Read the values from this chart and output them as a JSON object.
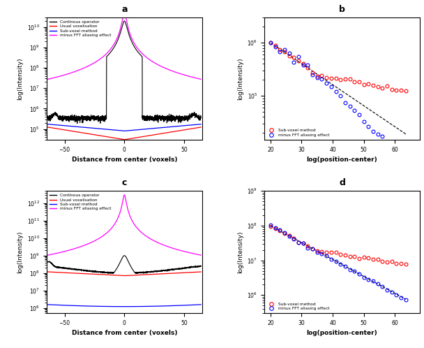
{
  "title_a": "a",
  "title_b": "b",
  "title_c": "c",
  "title_d": "d",
  "xlabel_left": "Distance from center (voxels)",
  "xlabel_right": "log(position-center)",
  "ylabel_left": "log(Intensity)",
  "ylabel_right": "log(Intensity)",
  "legend_a": [
    "Continous operator",
    "Usual voxelisation",
    "Sub-voxel method",
    "minus FFT aliasing effect"
  ],
  "legend_b": [
    "Sub-voxel method",
    "minus FFT aliasing effect"
  ],
  "colors_left": [
    "black",
    "red",
    "blue",
    "magenta"
  ],
  "panel_a_ylim": [
    30000.0,
    30000000000.0
  ],
  "panel_a_xlim": [
    -65,
    65
  ],
  "panel_c_ylim": [
    500000.0,
    5000000000000.0
  ],
  "panel_c_xlim": [
    -65,
    65
  ],
  "panel_b_xlim": [
    18,
    68
  ],
  "panel_b_ylim": [
    15000.0,
    3000000.0
  ],
  "panel_d_xlim": [
    18,
    68
  ],
  "panel_d_ylim": [
    300000.0,
    1000000000.0
  ]
}
